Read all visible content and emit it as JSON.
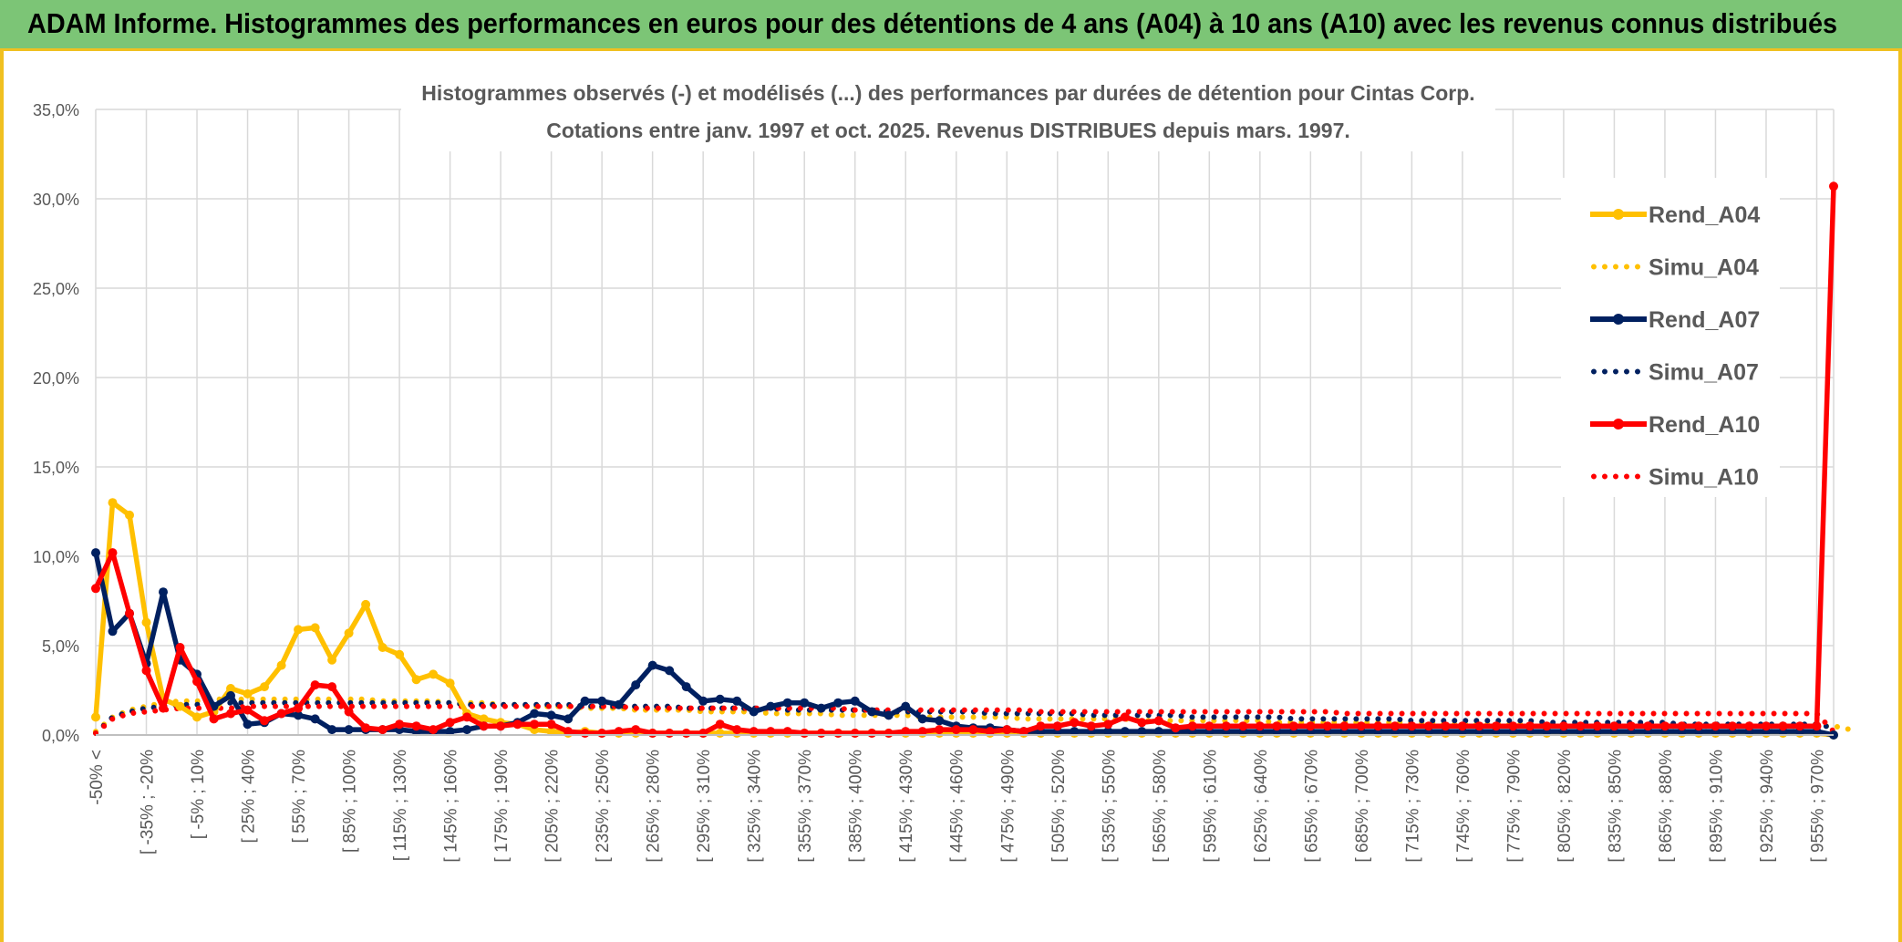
{
  "banner": {
    "title": "ADAM Informe. Histogrammes des performances en euros pour des détentions de 4 ans (A04) à 10 ans (A10) avec les revenus connus distribués"
  },
  "colors": {
    "banner": "#7cc576",
    "accent": "#f0c020",
    "A04": "#ffc000",
    "A07": "#002060",
    "A10": "#ff0000",
    "grid": "#d9d9d9",
    "text": "#595959"
  },
  "chart_data": {
    "type": "line",
    "title": "Histogrammes observés (-) et modélisés (...) des performances par durées de détention pour Cintas Corp.",
    "subtitle": "Cotations entre janv. 1997 et oct. 2025. Revenus DISTRIBUES depuis mars. 1997.",
    "ylim": [
      0,
      35
    ],
    "yticks": [
      "0,0%",
      "5,0%",
      "10,0%",
      "15,0%",
      "20,0%",
      "25,0%",
      "30,0%",
      "35,0%"
    ],
    "xtick_labels": [
      "-50% <",
      "[ -35% ; -20%",
      "[ -5% ; 10%",
      "[ 25% ; 40%",
      "[ 55% ; 70%",
      "[ 85% ; 100%",
      "[ 115% ; 130%",
      "[ 145% ; 160%",
      "[ 175% ; 190%",
      "[ 205% ; 220%",
      "[ 235% ; 250%",
      "[ 265% ; 280%",
      "[ 295% ; 310%",
      "[ 325% ; 340%",
      "[ 355% ; 370%",
      "[ 385% ; 400%",
      "[ 415% ; 430%",
      "[ 445% ; 460%",
      "[ 475% ; 490%",
      "[ 505% ; 520%",
      "[ 535% ; 550%",
      "[ 565% ; 580%",
      "[ 595% ; 610%",
      "[ 625% ; 640%",
      "[ 655% ; 670%",
      "[ 685% ; 700%",
      "[ 715% ; 730%",
      "[ 745% ; 760%",
      "[ 775% ; 790%",
      "[ 805% ; 820%",
      "[ 835% ; 850%",
      "[ 865% ; 880%",
      "[ 895% ; 910%",
      "[ 925% ; 940%",
      "[ 955% ; 970%"
    ],
    "legend": [
      "Rend_A04",
      "Simu_A04",
      "Rend_A07",
      "Simu_A07",
      "Rend_A10",
      "Simu_A10"
    ],
    "series": [
      {
        "name": "Rend_A04",
        "style": "solid",
        "color": "#ffc000",
        "values": [
          1.0,
          13.0,
          12.3,
          6.3,
          2.0,
          1.6,
          1.0,
          1.3,
          2.6,
          2.3,
          2.7,
          3.9,
          5.9,
          6.0,
          4.2,
          5.7,
          7.3,
          4.9,
          4.5,
          3.1,
          3.4,
          2.9,
          1.2,
          0.9,
          0.7,
          0.6,
          0.3,
          0.2,
          0.1,
          0.2,
          0.1,
          0.1,
          0.1,
          0.1,
          0.1,
          0.1,
          0.1,
          0.1,
          0.1,
          0.1,
          0.1,
          0.1,
          0.1,
          0.1,
          0.1,
          0.1,
          0.1,
          0.1,
          0.1,
          0.1,
          0.1,
          0.1,
          0.1,
          0.1,
          0.1,
          0.1,
          0.1,
          0.1,
          0.1,
          0.1,
          0.1,
          0.1,
          0.1,
          0.1,
          0.1,
          0.1,
          0.1,
          0.1,
          0.1,
          0.1,
          0.1,
          0.1,
          0.1,
          0.1,
          0.1,
          0.1,
          0.1,
          0.1,
          0.1,
          0.1,
          0.1,
          0.1,
          0.1,
          0.1,
          0.1,
          0.1,
          0.1,
          0.1,
          0.1,
          0.1,
          0.1,
          0.1,
          0.1,
          0.1,
          0.1,
          0.1,
          0.1,
          0.1,
          0.1,
          0.1,
          0.1,
          0.1,
          0.1,
          0.0
        ]
      },
      {
        "name": "Simu_A04",
        "style": "dotted",
        "color": "#ffc000",
        "values": [
          0.2,
          1.0,
          1.4,
          1.6,
          1.8,
          1.9,
          1.9,
          2.0,
          2.0,
          2.0,
          2.0,
          2.0,
          2.0,
          2.0,
          2.0,
          2.0,
          2.0,
          1.9,
          1.9,
          1.9,
          1.9,
          1.8,
          1.8,
          1.8,
          1.7,
          1.7,
          1.6,
          1.6,
          1.6,
          1.5,
          1.5,
          1.5,
          1.4,
          1.4,
          1.4,
          1.4,
          1.3,
          1.3,
          1.3,
          1.3,
          1.2,
          1.2,
          1.2,
          1.2,
          1.1,
          1.1,
          1.1,
          1.1,
          1.1,
          1.0,
          1.0,
          1.0,
          1.0,
          1.0,
          1.0,
          0.9,
          0.9,
          0.9,
          0.9,
          0.9,
          0.9,
          0.9,
          0.8,
          0.8,
          0.8,
          0.8,
          0.8,
          0.8,
          0.8,
          0.8,
          0.7,
          0.7,
          0.7,
          0.7,
          0.7,
          0.7,
          0.7,
          0.7,
          0.7,
          0.7,
          0.6,
          0.6,
          0.6,
          0.6,
          0.6,
          0.6,
          0.6,
          0.6,
          0.6,
          0.6,
          0.6,
          0.6,
          0.5,
          0.5,
          0.5,
          0.5,
          0.5,
          0.5,
          0.5,
          0.5,
          0.5,
          0.5,
          0.5,
          0.5,
          0.3
        ]
      },
      {
        "name": "Rend_A07",
        "style": "solid",
        "color": "#002060",
        "values": [
          10.2,
          5.8,
          6.8,
          4.0,
          8.0,
          4.2,
          3.4,
          1.6,
          2.2,
          0.6,
          0.7,
          1.2,
          1.1,
          0.9,
          0.3,
          0.3,
          0.3,
          0.3,
          0.3,
          0.2,
          0.2,
          0.2,
          0.3,
          0.5,
          0.5,
          0.7,
          1.2,
          1.1,
          0.9,
          1.9,
          1.9,
          1.7,
          2.8,
          3.9,
          3.6,
          2.7,
          1.9,
          2.0,
          1.9,
          1.3,
          1.6,
          1.8,
          1.8,
          1.5,
          1.8,
          1.9,
          1.3,
          1.1,
          1.6,
          0.9,
          0.8,
          0.5,
          0.4,
          0.4,
          0.3,
          0.2,
          0.2,
          0.2,
          0.2,
          0.2,
          0.2,
          0.2,
          0.2,
          0.2,
          0.2,
          0.2,
          0.2,
          0.2,
          0.2,
          0.2,
          0.2,
          0.2,
          0.2,
          0.2,
          0.2,
          0.2,
          0.2,
          0.2,
          0.2,
          0.2,
          0.2,
          0.2,
          0.2,
          0.2,
          0.2,
          0.2,
          0.2,
          0.2,
          0.2,
          0.2,
          0.2,
          0.2,
          0.2,
          0.2,
          0.2,
          0.2,
          0.2,
          0.2,
          0.2,
          0.2,
          0.2,
          0.2,
          0.2,
          0.0
        ]
      },
      {
        "name": "Simu_A07",
        "style": "dotted",
        "color": "#002060",
        "values": [
          0.1,
          1.0,
          1.3,
          1.5,
          1.6,
          1.7,
          1.7,
          1.8,
          1.8,
          1.8,
          1.8,
          1.8,
          1.8,
          1.8,
          1.8,
          1.8,
          1.8,
          1.8,
          1.8,
          1.8,
          1.8,
          1.8,
          1.7,
          1.7,
          1.7,
          1.7,
          1.7,
          1.7,
          1.7,
          1.6,
          1.6,
          1.6,
          1.6,
          1.6,
          1.6,
          1.5,
          1.5,
          1.5,
          1.5,
          1.5,
          1.5,
          1.4,
          1.4,
          1.4,
          1.4,
          1.4,
          1.4,
          1.3,
          1.3,
          1.3,
          1.3,
          1.3,
          1.3,
          1.2,
          1.2,
          1.2,
          1.2,
          1.2,
          1.2,
          1.1,
          1.1,
          1.1,
          1.1,
          1.1,
          1.1,
          1.0,
          1.0,
          1.0,
          1.0,
          1.0,
          1.0,
          0.9,
          0.9,
          0.9,
          0.9,
          0.9,
          0.9,
          0.9,
          0.8,
          0.8,
          0.8,
          0.8,
          0.8,
          0.8,
          0.8,
          0.8,
          0.7,
          0.7,
          0.7,
          0.7,
          0.7,
          0.7,
          0.7,
          0.7,
          0.6,
          0.6,
          0.6,
          0.6,
          0.6,
          0.6,
          0.6,
          0.6,
          0.6,
          0.4
        ]
      },
      {
        "name": "Rend_A10",
        "style": "solid",
        "color": "#ff0000",
        "values": [
          8.2,
          10.2,
          6.8,
          3.6,
          1.5,
          4.9,
          3.0,
          0.9,
          1.2,
          1.4,
          0.8,
          1.2,
          1.5,
          2.8,
          2.7,
          1.3,
          0.4,
          0.3,
          0.6,
          0.5,
          0.3,
          0.7,
          1.0,
          0.5,
          0.5,
          0.6,
          0.6,
          0.6,
          0.2,
          0.1,
          0.1,
          0.2,
          0.3,
          0.1,
          0.1,
          0.1,
          0.1,
          0.6,
          0.3,
          0.2,
          0.2,
          0.2,
          0.1,
          0.1,
          0.1,
          0.1,
          0.1,
          0.1,
          0.2,
          0.2,
          0.3,
          0.3,
          0.3,
          0.2,
          0.3,
          0.2,
          0.5,
          0.5,
          0.7,
          0.5,
          0.6,
          1.0,
          0.7,
          0.8,
          0.4,
          0.5,
          0.5,
          0.5,
          0.5,
          0.5,
          0.5,
          0.5,
          0.5,
          0.5,
          0.5,
          0.5,
          0.5,
          0.5,
          0.5,
          0.5,
          0.5,
          0.5,
          0.5,
          0.5,
          0.5,
          0.5,
          0.5,
          0.5,
          0.5,
          0.5,
          0.5,
          0.5,
          0.5,
          0.5,
          0.5,
          0.5,
          0.5,
          0.5,
          0.5,
          0.5,
          0.5,
          0.5,
          0.5,
          30.7
        ]
      },
      {
        "name": "Simu_A10",
        "style": "dotted",
        "color": "#ff0000",
        "values": [
          0.1,
          0.9,
          1.2,
          1.3,
          1.4,
          1.5,
          1.5,
          1.5,
          1.5,
          1.6,
          1.6,
          1.6,
          1.6,
          1.6,
          1.6,
          1.6,
          1.6,
          1.6,
          1.6,
          1.6,
          1.6,
          1.6,
          1.6,
          1.6,
          1.6,
          1.6,
          1.6,
          1.6,
          1.6,
          1.6,
          1.6,
          1.6,
          1.5,
          1.5,
          1.5,
          1.5,
          1.5,
          1.5,
          1.5,
          1.5,
          1.5,
          1.5,
          1.5,
          1.5,
          1.5,
          1.4,
          1.4,
          1.4,
          1.4,
          1.4,
          1.4,
          1.4,
          1.4,
          1.4,
          1.4,
          1.4,
          1.3,
          1.3,
          1.3,
          1.3,
          1.3,
          1.3,
          1.3,
          1.3,
          1.3,
          1.3,
          1.3,
          1.3,
          1.3,
          1.3,
          1.3,
          1.3,
          1.3,
          1.3,
          1.2,
          1.2,
          1.2,
          1.2,
          1.2,
          1.2,
          1.2,
          1.2,
          1.2,
          1.2,
          1.2,
          1.2,
          1.2,
          1.2,
          1.2,
          1.2,
          1.2,
          1.2,
          1.2,
          1.2,
          1.2,
          1.2,
          1.2,
          1.2,
          1.2,
          1.2,
          1.2,
          1.2,
          1.2,
          0.2
        ]
      }
    ]
  }
}
